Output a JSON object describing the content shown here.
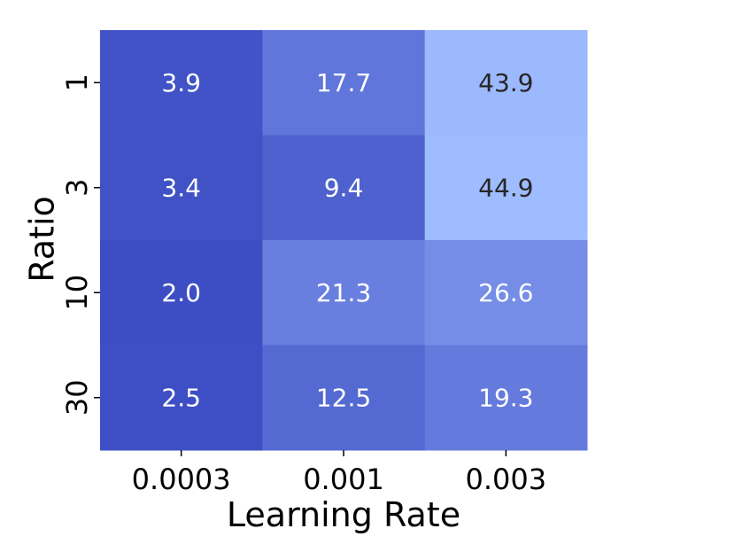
{
  "chart_data": {
    "type": "heatmap",
    "title": "",
    "xlabel": "Learning Rate",
    "ylabel": "Ratio",
    "x_categories": [
      "0.0003",
      "0.001",
      "0.003"
    ],
    "y_categories": [
      "1",
      "3",
      "10",
      "30"
    ],
    "values": [
      [
        3.9,
        17.7,
        43.9
      ],
      [
        3.4,
        9.4,
        44.9
      ],
      [
        2.0,
        21.3,
        26.6
      ],
      [
        2.5,
        12.5,
        19.3
      ]
    ],
    "value_labels": [
      [
        "3.9",
        "17.7",
        "43.9"
      ],
      [
        "3.4",
        "9.4",
        "44.9"
      ],
      [
        "2.0",
        "21.3",
        "26.6"
      ],
      [
        "2.5",
        "12.5",
        "19.3"
      ]
    ],
    "colormap": {
      "low_color": "#3d4ec4",
      "high_color": "#9ebcff",
      "dark_text_color": "#262626",
      "light_text_color": "#ffffff"
    },
    "grid": false,
    "legend": "none"
  }
}
